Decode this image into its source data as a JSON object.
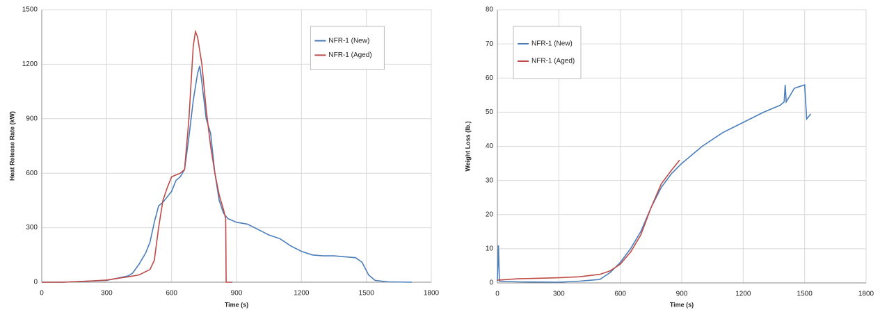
{
  "chart_data": [
    {
      "type": "line",
      "xlabel": "Time (s)",
      "ylabel": "Heat Release Rate (kW)",
      "xlim": [
        0,
        1800
      ],
      "xticks": [
        0,
        300,
        600,
        900,
        1200,
        1500,
        1800
      ],
      "ylim": [
        0,
        1500
      ],
      "yticks": [
        0,
        300,
        600,
        900,
        1200,
        1500
      ],
      "grid": true,
      "legend": "upper right",
      "series": [
        {
          "name": "NFR-1 (New)",
          "color": "#4a7ebb",
          "x": [
            0,
            100,
            200,
            300,
            360,
            400,
            420,
            450,
            480,
            500,
            520,
            540,
            560,
            580,
            600,
            620,
            640,
            660,
            680,
            700,
            720,
            730,
            740,
            760,
            780,
            800,
            820,
            840,
            860,
            900,
            950,
            1000,
            1050,
            1100,
            1150,
            1200,
            1250,
            1300,
            1350,
            1400,
            1450,
            1480,
            1510,
            1540,
            1600,
            1710
          ],
          "values": [
            0,
            0,
            5,
            10,
            25,
            35,
            50,
            100,
            160,
            220,
            330,
            420,
            440,
            470,
            500,
            560,
            580,
            620,
            800,
            1000,
            1150,
            1190,
            1100,
            900,
            820,
            600,
            450,
            380,
            350,
            330,
            320,
            290,
            260,
            240,
            200,
            170,
            150,
            145,
            145,
            140,
            135,
            110,
            40,
            10,
            2,
            0
          ]
        },
        {
          "name": "NFR-1 (Aged)",
          "color": "#be4b48",
          "x": [
            0,
            100,
            200,
            300,
            400,
            450,
            500,
            520,
            540,
            560,
            580,
            600,
            620,
            640,
            660,
            680,
            700,
            710,
            720,
            740,
            760,
            780,
            800,
            820,
            840,
            850,
            852,
            880
          ],
          "values": [
            0,
            0,
            5,
            12,
            30,
            40,
            70,
            120,
            300,
            450,
            520,
            580,
            590,
            600,
            620,
            900,
            1300,
            1380,
            1350,
            1200,
            950,
            750,
            600,
            480,
            400,
            350,
            0,
            0
          ]
        }
      ]
    },
    {
      "type": "line",
      "xlabel": "Time (s)",
      "ylabel": "Weight Loss (lb.)",
      "xlim": [
        0,
        1800
      ],
      "xticks": [
        0,
        300,
        600,
        900,
        1200,
        1500,
        1800
      ],
      "ylim": [
        0,
        80
      ],
      "yticks": [
        0,
        10,
        20,
        30,
        40,
        50,
        60,
        70,
        80
      ],
      "grid": true,
      "legend": "upper left",
      "series": [
        {
          "name": "NFR-1 (New)",
          "color": "#4a7ebb",
          "x": [
            0,
            5,
            10,
            100,
            300,
            400,
            500,
            550,
            600,
            650,
            700,
            750,
            800,
            850,
            900,
            1000,
            1100,
            1200,
            1300,
            1380,
            1400,
            1405,
            1410,
            1450,
            1500,
            1510,
            1530
          ],
          "values": [
            0.5,
            11,
            0.5,
            0.3,
            0.2,
            0.5,
            1,
            3,
            6,
            10,
            15,
            22,
            28,
            32,
            35,
            40,
            44,
            47,
            50,
            52,
            53,
            58,
            53,
            57,
            58,
            48,
            49.5
          ]
        },
        {
          "name": "NFR-1 (Aged)",
          "color": "#be4b48",
          "x": [
            0,
            50,
            100,
            300,
            400,
            500,
            550,
            600,
            650,
            700,
            750,
            800,
            850,
            890
          ],
          "values": [
            0.8,
            1,
            1.2,
            1.5,
            1.8,
            2.5,
            3.5,
            5.5,
            9,
            14,
            22,
            29,
            33,
            36
          ]
        }
      ]
    }
  ]
}
